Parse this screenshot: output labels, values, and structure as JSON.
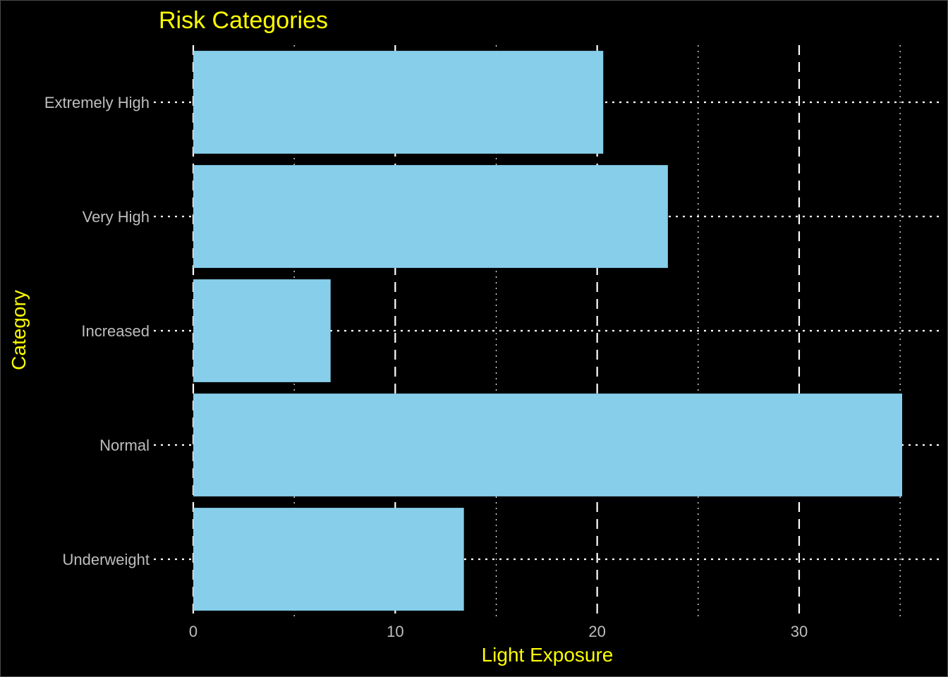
{
  "chart_data": {
    "type": "bar",
    "orientation": "horizontal",
    "title": "Risk Categories",
    "xlabel": "Light Exposure",
    "ylabel": "Category",
    "categories": [
      "Underweight",
      "Normal",
      "Increased",
      "Very High",
      "Extremely High"
    ],
    "values": [
      13.4,
      35.1,
      6.8,
      23.5,
      20.3
    ],
    "xlim": [
      0,
      35.1
    ],
    "xticks": [
      0,
      10,
      20,
      30
    ],
    "grid": true,
    "legend": "none"
  },
  "colors": {
    "background": "#000000",
    "bar": "#87CEEB",
    "title": "#FFFF00",
    "axis_title": "#FFFF00",
    "tick_label": "#BEBEBE",
    "grid": "#FFFFFF"
  }
}
